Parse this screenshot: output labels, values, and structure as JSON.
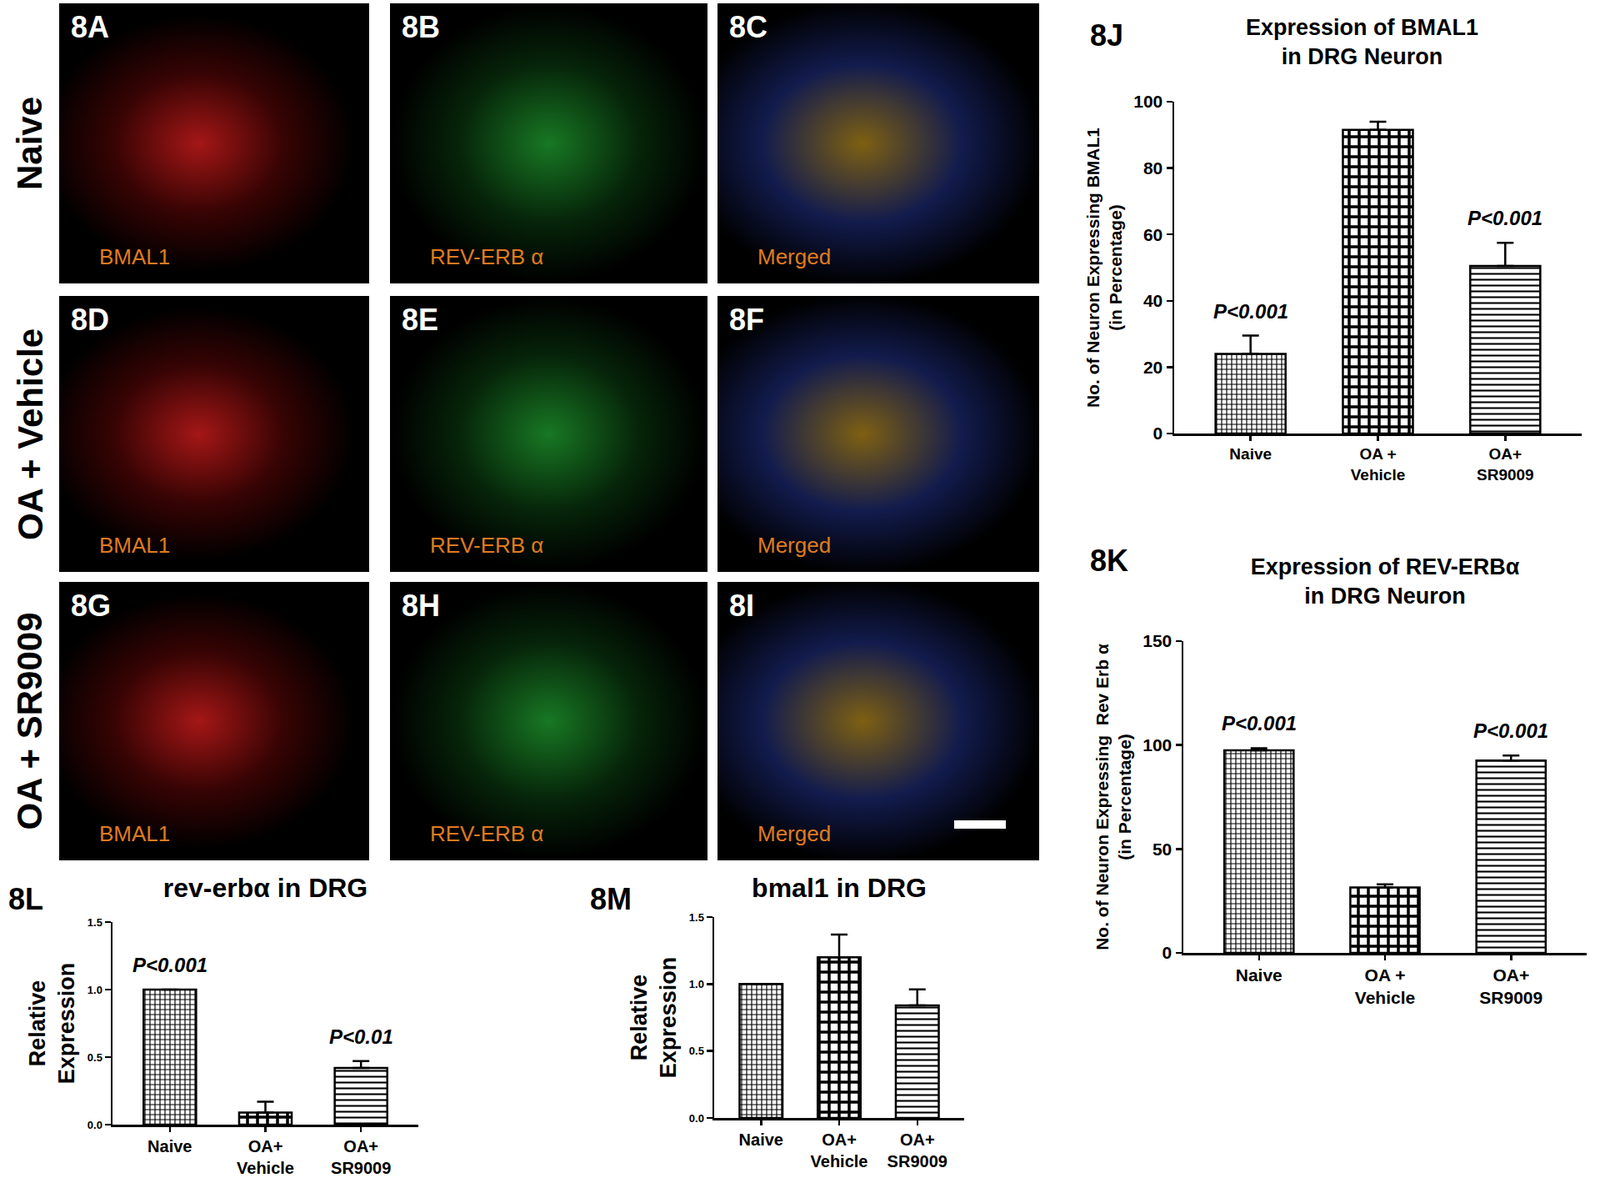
{
  "panels": {
    "rows": [
      {
        "label": "Naive",
        "cells": [
          {
            "id": "8A",
            "stain": "BMAL1"
          },
          {
            "id": "8B",
            "stain": "REV-ERB α"
          },
          {
            "id": "8C",
            "stain": "Merged"
          }
        ]
      },
      {
        "label": "OA + Vehicle",
        "cells": [
          {
            "id": "8D",
            "stain": "BMAL1"
          },
          {
            "id": "8E",
            "stain": "REV-ERB α"
          },
          {
            "id": "8F",
            "stain": "Merged"
          }
        ]
      },
      {
        "label": "OA + SR9009",
        "cells": [
          {
            "id": "8G",
            "stain": "BMAL1"
          },
          {
            "id": "8H",
            "stain": "REV-ERB α"
          },
          {
            "id": "8I",
            "stain": "Merged"
          }
        ]
      }
    ]
  },
  "chart_data": [
    {
      "label": "8J",
      "type": "bar",
      "title": "Expression of BMAL1\nin DRG Neuron",
      "y_label": "No. of Neuron Expressing BMAL1\n(in Percentage)",
      "categories": [
        "Naive",
        "OA +\nVehicle",
        "OA+\nSR9009"
      ],
      "values": [
        24,
        91.5,
        50.5
      ],
      "error": [
        5.5,
        2.5,
        7
      ],
      "color": "#000000",
      "ylim": [
        0,
        100
      ],
      "yticks": [
        0,
        20,
        40,
        60,
        80,
        100
      ],
      "annotations": [
        {
          "at": "Naive",
          "text": "P<0.001"
        },
        {
          "at": "OA+\nSR9009",
          "text": "P<0.001"
        }
      ]
    },
    {
      "label": "8K",
      "type": "bar",
      "title": "Expression of REV-ERBα\nin DRG Neuron",
      "y_label": "No. of Neuron Expressing  Rev Erb α\n(in Percentage)",
      "categories": [
        "Naive",
        "OA +\nVehicle",
        "OA+\nSR9009"
      ],
      "values": [
        97.5,
        31.5,
        92.5
      ],
      "error": [
        1,
        1.5,
        2.5
      ],
      "color": "#000000",
      "ylim": [
        0,
        150
      ],
      "yticks": [
        0,
        50,
        100,
        150
      ],
      "annotations": [
        {
          "at": "Naive",
          "text": "P<0.001"
        },
        {
          "at": "OA+\nSR9009",
          "text": "P<0.001"
        }
      ]
    },
    {
      "label": "8L",
      "type": "bar",
      "title": "rev-erbα in DRG",
      "y_label": "Relative\nExpression",
      "categories": [
        "Naive",
        "OA+\nVehicle",
        "OA+\nSR9009"
      ],
      "values": [
        1.0,
        0.09,
        0.42
      ],
      "error": [
        0,
        0.08,
        0.05
      ],
      "color": "#000000",
      "ylim": [
        0,
        1.5
      ],
      "yticks": [
        {
          "value": 0,
          "label": "0.0"
        },
        0.5,
        {
          "value": 1,
          "label": "1.0"
        },
        1.5
      ],
      "annotations": [
        {
          "at": "Naive",
          "text": "P<0.001"
        },
        {
          "at": "OA+\nSR9009",
          "text": "P<0.01"
        }
      ]
    },
    {
      "label": "8M",
      "type": "bar",
      "title": "bmal1 in DRG",
      "y_label": "Relative\nExpression",
      "categories": [
        "Naive",
        "OA+\nVehicle",
        "OA+\nSR9009"
      ],
      "values": [
        1.0,
        1.2,
        0.84
      ],
      "error": [
        0,
        0.17,
        0.12
      ],
      "color": "#000000",
      "ylim": [
        0,
        1.5
      ],
      "yticks": [
        {
          "value": 0,
          "label": "0.0"
        },
        0.5,
        {
          "value": 1,
          "label": "1.0"
        },
        1.5
      ],
      "annotations": []
    }
  ]
}
